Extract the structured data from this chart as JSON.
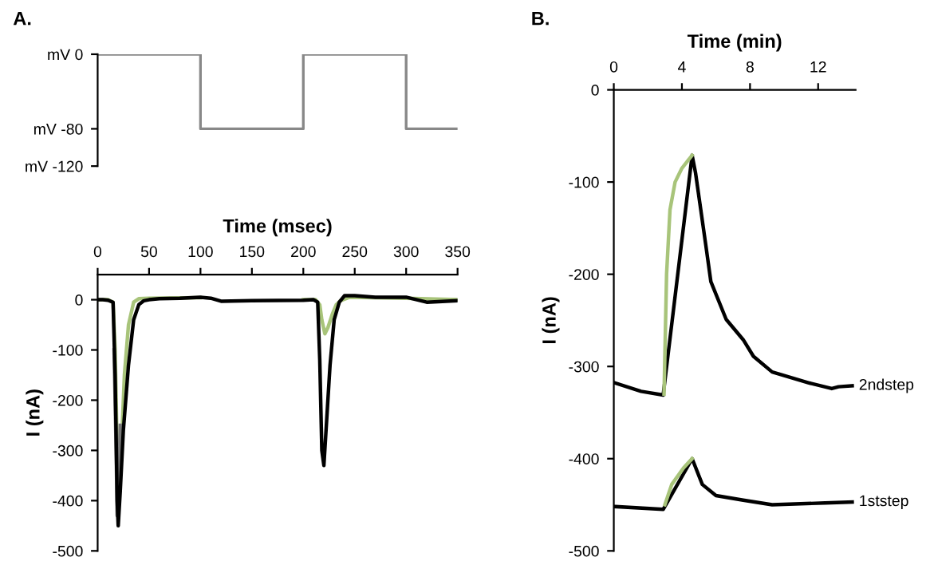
{
  "chart_data": [
    {
      "type": "step",
      "annotations": [
        "A."
      ],
      "categories": [
        null,
        null,
        null,
        null,
        null,
        null,
        null,
        null
      ],
      "ylim": [
        -120,
        0
      ],
      "yticks": [
        {
          "value": 0,
          "label": "mV 0"
        },
        {
          "value": -80,
          "label": "mV -80"
        },
        {
          "value": -120,
          "label": "mV -120"
        }
      ],
      "tick_labels": "y",
      "grid": false,
      "legend": false,
      "series": [
        {
          "color": "#888888",
          "values": [
            0,
            0,
            0,
            -80,
            -80,
            0,
            0,
            -80
          ]
        }
      ]
    },
    {
      "type": "line",
      "xlabel": "Time (msec)",
      "ylabel": "I (nA)",
      "xlim": [
        0,
        350
      ],
      "ylim": [
        -500,
        50
      ],
      "xticks": [
        0,
        50,
        100,
        150,
        200,
        250,
        300,
        350
      ],
      "yticks": [
        -500,
        -400,
        -300,
        -200,
        -100,
        0
      ],
      "grid": false,
      "legend": false,
      "series": [
        {
          "color": "#a8c47a",
          "x": [
            0,
            10,
            15,
            17,
            19,
            21,
            23,
            26,
            30,
            35,
            40,
            50,
            100,
            150,
            200,
            212,
            216,
            218,
            221,
            224,
            228,
            232,
            236,
            245,
            300,
            350
          ],
          "values": [
            0,
            0,
            -5,
            -100,
            -300,
            -400,
            -300,
            -150,
            -50,
            -5,
            2,
            3,
            4,
            null,
            0,
            0,
            -10,
            -40,
            -68,
            -55,
            -30,
            -10,
            -2,
            5,
            3,
            0
          ]
        },
        {
          "color": "#777777",
          "x": [
            16,
            18,
            19,
            20,
            22
          ],
          "values": [
            -100,
            -300,
            -430,
            -400,
            -250
          ]
        },
        {
          "color": "#000000",
          "x": [
            0,
            5,
            10,
            15,
            17,
            19,
            20,
            22,
            25,
            30,
            35,
            40,
            45,
            50,
            60,
            80,
            100,
            110,
            120,
            150,
            200,
            210,
            214,
            216,
            218,
            220,
            223,
            226,
            230,
            235,
            240,
            250,
            270,
            300,
            320,
            350
          ],
          "values": [
            0,
            0,
            -1,
            -5,
            -150,
            -400,
            -450,
            -380,
            -260,
            -130,
            -40,
            -10,
            -2,
            0,
            2,
            3,
            5,
            3,
            -3,
            -2,
            -1,
            0,
            -5,
            -120,
            -300,
            -330,
            -230,
            -130,
            -40,
            -5,
            8,
            8,
            5,
            5,
            -5,
            -2
          ]
        }
      ]
    },
    {
      "type": "line",
      "annotations": [
        "B."
      ],
      "xlabel": "Time (min)",
      "ylabel": "I (nA)",
      "xlim": [
        0,
        14.2
      ],
      "ylim": [
        -500,
        0
      ],
      "xticks": [
        0,
        4,
        8,
        12
      ],
      "yticks": [
        -500,
        -400,
        -300,
        -200,
        -100,
        0
      ],
      "grid": false,
      "legend": false,
      "series": [
        {
          "name": "2ndstep",
          "color": "#000000",
          "x": [
            0.1,
            1.6,
            2.9,
            4.6,
            4.8,
            5.4,
            5.7,
            6.6,
            7.6,
            8.2,
            9.3,
            11.5,
            12.8,
            13.2,
            14.0
          ],
          "values": [
            -318,
            -327,
            -331,
            -71,
            -90,
            -168,
            -208,
            -249,
            -271,
            -289,
            -306,
            -318,
            -324,
            -322,
            -321
          ]
        },
        {
          "color": "#a8c47a",
          "x": [
            2.95,
            3.1,
            3.3,
            3.6,
            4.0,
            4.3,
            4.6
          ],
          "values": [
            -330,
            -200,
            -130,
            -100,
            -85,
            -78,
            -71
          ]
        },
        {
          "name": "1ststep",
          "color": "#000000",
          "x": [
            0.1,
            2.9,
            4.6,
            5.2,
            6.0,
            7.6,
            9.3,
            12.4,
            14.0
          ],
          "values": [
            -452,
            -455,
            -400,
            -428,
            -440,
            -445,
            -450,
            -448,
            -447
          ]
        },
        {
          "color": "#a8c47a",
          "x": [
            3.0,
            3.4,
            4.1,
            4.6
          ],
          "values": [
            -450,
            -428,
            -410,
            -400
          ]
        }
      ]
    }
  ]
}
